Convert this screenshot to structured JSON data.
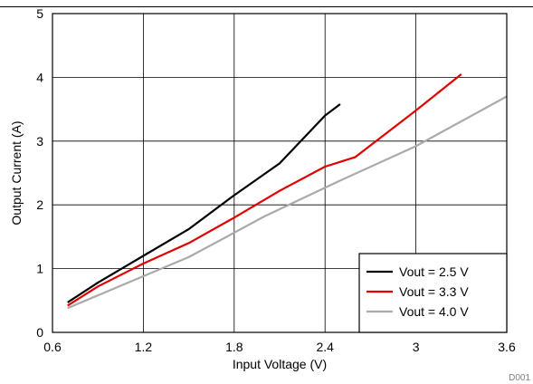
{
  "chart_data": {
    "type": "line",
    "title": "",
    "xlabel": "Input Voltage (V)",
    "ylabel": "Output Current (A)",
    "xlim": [
      0.6,
      3.6
    ],
    "ylim": [
      0,
      5
    ],
    "xticks": [
      0.6,
      1.2,
      1.8,
      2.4,
      3,
      3.6
    ],
    "xtick_labels": [
      "0.6",
      "1.2",
      "1.8",
      "2.4",
      "3",
      "3.6"
    ],
    "yticks": [
      0,
      1,
      2,
      3,
      4,
      5
    ],
    "ytick_labels": [
      "0",
      "1",
      "2",
      "3",
      "4",
      "5"
    ],
    "grid": true,
    "legend_position": "bottom-right",
    "series": [
      {
        "name": "Vout = 2.5 V",
        "color": "#000000",
        "x": [
          0.7,
          0.9,
          1.2,
          1.5,
          1.8,
          2.1,
          2.4,
          2.5
        ],
        "y": [
          0.47,
          0.78,
          1.2,
          1.62,
          2.15,
          2.65,
          3.4,
          3.58
        ]
      },
      {
        "name": "Vout = 3.3 V",
        "color": "#e00000",
        "x": [
          0.7,
          0.9,
          1.2,
          1.5,
          1.8,
          2.1,
          2.4,
          2.6,
          3.0,
          3.3
        ],
        "y": [
          0.42,
          0.72,
          1.08,
          1.4,
          1.8,
          2.22,
          2.6,
          2.75,
          3.48,
          4.05
        ]
      },
      {
        "name": "Vout = 4.0 V",
        "color": "#aaaaaa",
        "x": [
          0.7,
          1.0,
          1.5,
          2.0,
          2.5,
          3.0,
          3.6
        ],
        "y": [
          0.38,
          0.68,
          1.18,
          1.82,
          2.38,
          2.92,
          3.7
        ]
      }
    ],
    "annotation": "D001"
  }
}
